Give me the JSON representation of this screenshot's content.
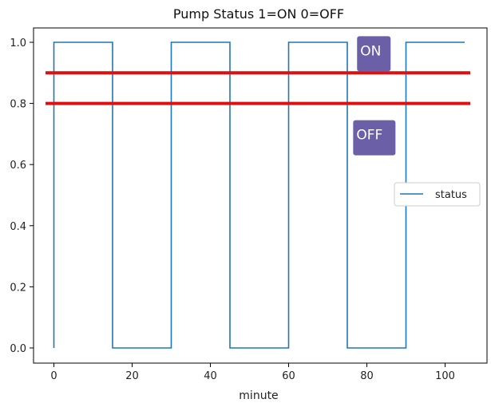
{
  "chart_data": {
    "type": "line",
    "title": "Pump Status 1=ON 0=OFF",
    "xlabel": "minute",
    "ylabel": "",
    "xlim": [
      -3,
      106
    ],
    "ylim": [
      -0.05,
      1.05
    ],
    "xticks": [
      0,
      20,
      40,
      60,
      80,
      100
    ],
    "xtick_labels": [
      "0",
      "20",
      "40",
      "60",
      "80",
      "100"
    ],
    "yticks": [
      0.0,
      0.2,
      0.4,
      0.6,
      0.8,
      1.0
    ],
    "ytick_labels": [
      "0.0",
      "0.2",
      "0.4",
      "0.6",
      "0.8",
      "1.0"
    ],
    "grid": false,
    "legend_position": "center-right",
    "series": [
      {
        "name": "status",
        "color": "#1f77b4",
        "x": [
          0,
          0,
          15,
          15,
          30,
          30,
          45,
          45,
          60,
          60,
          75,
          75,
          90,
          90,
          105
        ],
        "y": [
          0,
          1,
          1,
          0,
          0,
          1,
          1,
          0,
          0,
          1,
          1,
          0,
          0,
          1,
          1
        ]
      }
    ],
    "hlines": [
      {
        "y": 0.9,
        "color": "#dd1111"
      },
      {
        "y": 0.8,
        "color": "#dd1111"
      }
    ],
    "annotations": [
      {
        "text": "ON",
        "x": 77.5,
        "y": 1.02,
        "box_color": "#6b5fa8"
      },
      {
        "text": "OFF",
        "x": 76.5,
        "y": 0.745,
        "box_color": "#6b5fa8"
      }
    ]
  }
}
